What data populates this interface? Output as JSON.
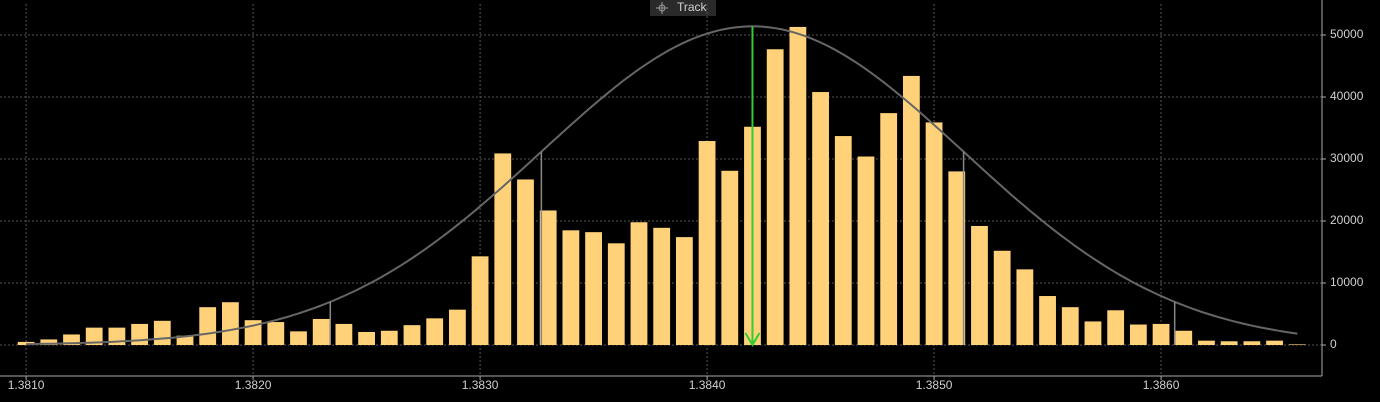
{
  "chart_data": {
    "type": "bar",
    "track_label": "Track",
    "x": [
      1.381,
      1.3811,
      1.3812,
      1.3813,
      1.3814,
      1.3815,
      1.3816,
      1.3817,
      1.3818,
      1.3819,
      1.382,
      1.3821,
      1.3822,
      1.3823,
      1.3824,
      1.3825,
      1.3826,
      1.3827,
      1.3828,
      1.3829,
      1.383,
      1.3831,
      1.3832,
      1.3833,
      1.3834,
      1.3835,
      1.3836,
      1.3837,
      1.3838,
      1.3839,
      1.384,
      1.3841,
      1.3842,
      1.3843,
      1.3844,
      1.3845,
      1.3846,
      1.3847,
      1.3848,
      1.3849,
      1.385,
      1.3851,
      1.3852,
      1.3853,
      1.3854,
      1.3855,
      1.3856,
      1.3857,
      1.3858,
      1.3859,
      1.386,
      1.3861,
      1.3862,
      1.3863,
      1.3864,
      1.3865,
      1.3866
    ],
    "values": [
      500,
      900,
      1700,
      2800,
      2800,
      3400,
      3900,
      1500,
      6100,
      6900,
      4000,
      3700,
      2200,
      4200,
      3400,
      2100,
      2300,
      3200,
      4300,
      5700,
      14300,
      30900,
      26700,
      21700,
      18500,
      18200,
      16400,
      19800,
      18900,
      17400,
      32900,
      28100,
      35200,
      47700,
      51300,
      40800,
      33700,
      30400,
      37400,
      43400,
      35900,
      28000,
      19200,
      15200,
      12200,
      7900,
      6100,
      3800,
      5600,
      3300,
      3400,
      2300,
      700,
      600,
      600,
      700,
      100
    ],
    "color": "#ffd27a",
    "fit": {
      "mean": 1.3842,
      "sd": 0.00093,
      "peak": 51400,
      "color": "#666666"
    },
    "sd_markers": [
      1.38234,
      1.38327,
      1.38513,
      1.38606
    ],
    "mean_color": "#33cc33",
    "xlim": [
      1.380885,
      1.386709
    ],
    "xticks": [
      {
        "value": 1.381,
        "label": "1.3810"
      },
      {
        "value": 1.382,
        "label": "1.3820"
      },
      {
        "value": 1.383,
        "label": "1.3830"
      },
      {
        "value": 1.384,
        "label": "1.3840"
      },
      {
        "value": 1.385,
        "label": "1.3850"
      },
      {
        "value": 1.386,
        "label": "1.3860"
      }
    ],
    "ylim": [
      -5000,
      55000
    ],
    "yticks": [
      0,
      10000,
      20000,
      30000,
      40000,
      50000
    ],
    "grid": true
  }
}
